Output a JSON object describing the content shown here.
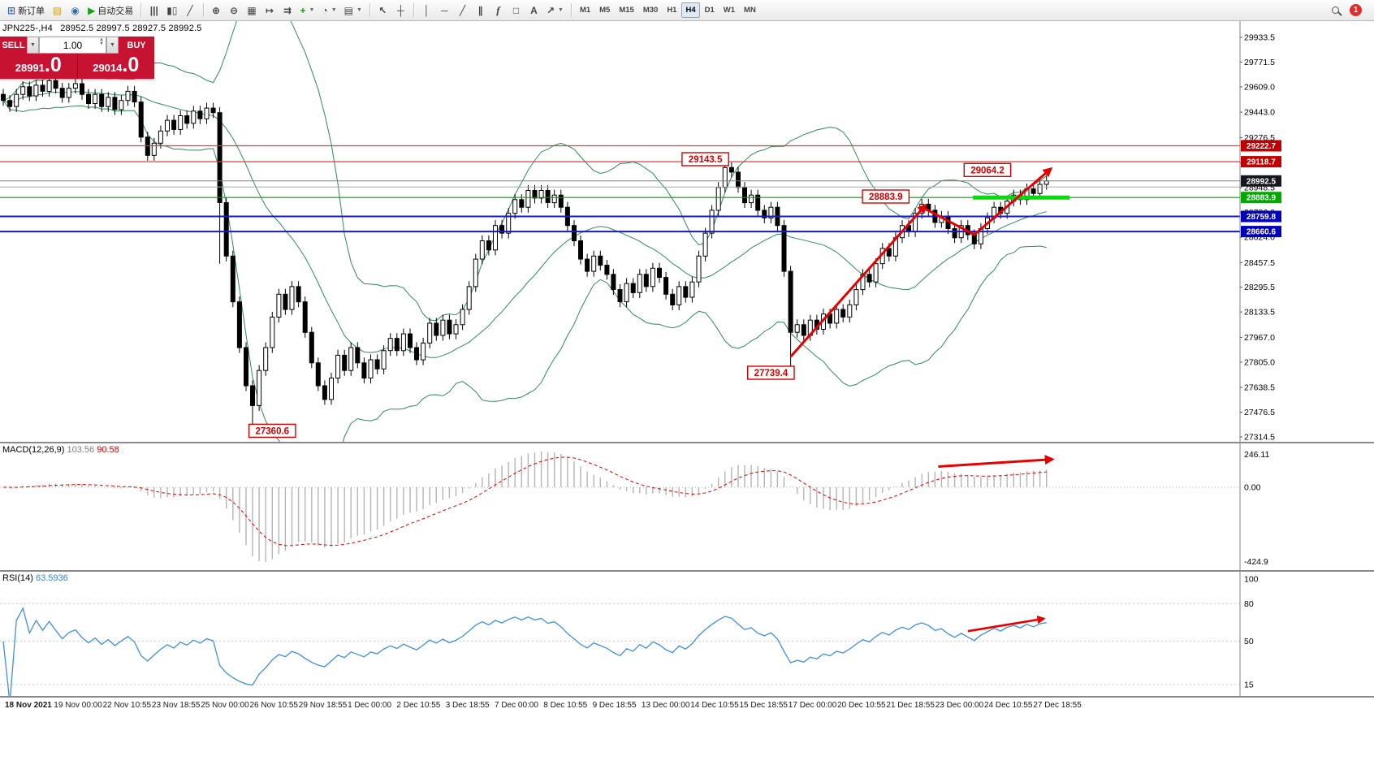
{
  "toolbar": {
    "active_timeframe": "H4",
    "items": [
      {
        "type": "labeled",
        "name": "new-order-button",
        "icon": "new-order-icon",
        "glyph": "⊞",
        "color": "#3a6ea5",
        "label": "新订单"
      },
      {
        "type": "icon",
        "name": "profiles-button",
        "icon": "profiles-icon",
        "glyph": "▨",
        "color": "#d9a21b"
      },
      {
        "type": "icon",
        "name": "data-window-button",
        "icon": "data-window-icon",
        "glyph": "◉",
        "color": "#3a6ea5"
      },
      {
        "type": "labeled",
        "name": "autotrading-button",
        "icon": "autotrading-play-icon",
        "glyph": "▶",
        "color": "#18a018",
        "label": "自动交易"
      },
      {
        "type": "sep"
      },
      {
        "type": "icon",
        "name": "bar-chart-button",
        "icon": "bar-chart-icon",
        "glyph": "|||",
        "color": "#444"
      },
      {
        "type": "icon",
        "name": "candlestick-chart-button",
        "icon": "candlestick-chart-icon",
        "glyph": "▮▯",
        "color": "#444"
      },
      {
        "type": "icon",
        "name": "line-chart-button",
        "icon": "line-chart-icon",
        "glyph": "╱",
        "color": "#444"
      },
      {
        "type": "sep"
      },
      {
        "type": "icon",
        "name": "zoom-in-button",
        "icon": "zoom-in-icon",
        "glyph": "⊕",
        "color": "#444"
      },
      {
        "type": "icon",
        "name": "zoom-out-button",
        "icon": "zoom-out-icon",
        "glyph": "⊖",
        "color": "#444"
      },
      {
        "type": "icon",
        "name": "tile-windows-button",
        "icon": "tile-windows-icon",
        "glyph": "▦",
        "color": "#444"
      },
      {
        "type": "icon",
        "name": "auto-scroll-button",
        "icon": "auto-scroll-icon",
        "glyph": "↦",
        "color": "#444"
      },
      {
        "type": "icon",
        "name": "chart-shift-button",
        "icon": "chart-shift-icon",
        "glyph": "⇉",
        "color": "#444"
      },
      {
        "type": "icon",
        "name": "indicators-button",
        "icon": "indicators-plus-icon",
        "glyph": "+",
        "color": "#18a018",
        "dropdown": true
      },
      {
        "type": "icon",
        "name": "periods-button",
        "icon": "clock-icon",
        "glyph": "◔",
        "color": "#444",
        "dropdown": true
      },
      {
        "type": "icon",
        "name": "templates-button",
        "icon": "template-icon",
        "glyph": "▤",
        "color": "#444",
        "dropdown": true
      },
      {
        "type": "sep"
      },
      {
        "type": "icon",
        "name": "cursor-button",
        "icon": "cursor-icon",
        "glyph": "↖",
        "color": "#444"
      },
      {
        "type": "icon",
        "name": "crosshair-button",
        "icon": "crosshair-icon",
        "glyph": "┼",
        "color": "#444"
      },
      {
        "type": "sep"
      },
      {
        "type": "icon",
        "name": "vertical-line-button",
        "icon": "vertical-line-icon",
        "glyph": "│",
        "color": "#444"
      },
      {
        "type": "icon",
        "name": "horizontal-line-button",
        "icon": "horizontal-line-icon",
        "glyph": "─",
        "color": "#444"
      },
      {
        "type": "icon",
        "name": "trendline-button",
        "icon": "trendline-icon",
        "glyph": "╱",
        "color": "#444"
      },
      {
        "type": "icon",
        "name": "channel-button",
        "icon": "channel-icon",
        "glyph": "∥",
        "color": "#444"
      },
      {
        "type": "icon",
        "name": "fibonacci-button",
        "icon": "fibonacci-icon",
        "glyph": "f",
        "color": "#444",
        "italic": true
      },
      {
        "type": "icon",
        "name": "shapes-button",
        "icon": "shapes-icon",
        "glyph": "□",
        "color": "#444"
      },
      {
        "type": "icon",
        "name": "text-button",
        "icon": "text-label-icon",
        "glyph": "A",
        "color": "#444"
      },
      {
        "type": "icon",
        "name": "arrow-tools-button",
        "icon": "arrow-tools-icon",
        "glyph": "↗",
        "color": "#444",
        "dropdown": true
      },
      {
        "type": "sep"
      },
      {
        "type": "tf",
        "name": "timeframe-m1",
        "label": "M1"
      },
      {
        "type": "tf",
        "name": "timeframe-m5",
        "label": "M5"
      },
      {
        "type": "tf",
        "name": "timeframe-m15",
        "label": "M15"
      },
      {
        "type": "tf",
        "name": "timeframe-m30",
        "label": "M30"
      },
      {
        "type": "tf",
        "name": "timeframe-h1",
        "label": "H1"
      },
      {
        "type": "tf",
        "name": "timeframe-h4",
        "label": "H4"
      },
      {
        "type": "tf",
        "name": "timeframe-d1",
        "label": "D1"
      },
      {
        "type": "tf",
        "name": "timeframe-w1",
        "label": "W1"
      },
      {
        "type": "tf",
        "name": "timeframe-mn",
        "label": "MN"
      },
      {
        "type": "spacer"
      },
      {
        "type": "magnifier",
        "name": "search-button"
      },
      {
        "type": "badge",
        "name": "notifications-badge",
        "label": "1"
      }
    ]
  },
  "chart_header": {
    "symbol_info": "JPN225-,H4",
    "ohlc": "28952.5 28997.5 28927.5 28992.5"
  },
  "trade_panel": {
    "sell_label": "SELL",
    "buy_label": "BUY",
    "volume": "1.00",
    "sell_price_prefix": "28991",
    "sell_price_big": ".0",
    "buy_price_prefix": "29014",
    "buy_price_big": ".0"
  },
  "macd": {
    "label": "MACD(12,26,9)",
    "value1": "103.56",
    "value2": "90.58",
    "axis": [
      "246.11",
      "0.00",
      "-424.9"
    ]
  },
  "rsi": {
    "label": "RSI(14)",
    "value": "63.5936",
    "axis": [
      "100",
      "80",
      "50",
      "15"
    ]
  },
  "time_axis": [
    "18 Nov 2021",
    "19 Nov 00:00",
    "22 Nov 10:55",
    "23 Nov 18:55",
    "25 Nov 00:00",
    "26 Nov 10:55",
    "29 Nov 18:55",
    "1 Dec 00:00",
    "2 Dec 10:55",
    "3 Dec 18:55",
    "7 Dec 00:00",
    "8 Dec 10:55",
    "9 Dec 18:55",
    "13 Dec 00:00",
    "14 Dec 10:55",
    "15 Dec 18:55",
    "17 Dec 00:00",
    "20 Dec 10:55",
    "21 Dec 18:55",
    "23 Dec 00:00",
    "24 Dec 10:55",
    "27 Dec 18:55"
  ],
  "chart_data": {
    "type": "candlestick",
    "symbol": "JPN225-",
    "timeframe": "H4",
    "title": "JPN225- H4 with Bollinger Bands, MACD(12,26,9), RSI(14)",
    "first_open": 29560,
    "closes": [
      29520,
      29480,
      29560,
      29610,
      29550,
      29620,
      29580,
      29650,
      29600,
      29540,
      29600,
      29630,
      29560,
      29500,
      29560,
      29480,
      29540,
      29460,
      29520,
      29580,
      29510,
      29280,
      29160,
      29240,
      29320,
      29390,
      29330,
      29420,
      29370,
      29450,
      29400,
      29470,
      29440,
      28850,
      28500,
      28200,
      27900,
      27650,
      27520,
      27750,
      27900,
      28100,
      28250,
      28150,
      28300,
      28200,
      28000,
      27800,
      27650,
      27560,
      27700,
      27850,
      27750,
      27900,
      27800,
      27700,
      27820,
      27760,
      27880,
      27960,
      27880,
      27990,
      27900,
      27820,
      27930,
      28060,
      27980,
      28080,
      27990,
      28050,
      28150,
      28300,
      28480,
      28600,
      28540,
      28700,
      28650,
      28780,
      28870,
      28820,
      28930,
      28880,
      28930,
      28850,
      28900,
      28820,
      28700,
      28600,
      28480,
      28400,
      28500,
      28440,
      28380,
      28280,
      28200,
      28320,
      28260,
      28380,
      28300,
      28420,
      28360,
      28250,
      28180,
      28300,
      28230,
      28330,
      28500,
      28650,
      28800,
      28950,
      29080,
      29050,
      28950,
      28850,
      28900,
      28800,
      28750,
      28820,
      28700,
      28400,
      28000,
      28050,
      27980,
      28080,
      28020,
      28120,
      28060,
      28150,
      28100,
      28180,
      28280,
      28380,
      28330,
      28450,
      28550,
      28500,
      28620,
      28700,
      28660,
      28780,
      28840,
      28800,
      28720,
      28760,
      28680,
      28620,
      28700,
      28640,
      28580,
      28680,
      28750,
      28820,
      28780,
      28860,
      28900,
      28870,
      28940,
      28910,
      28970,
      28992.5
    ],
    "wick_overrides": {
      "highs": {
        "110": 29143.5
      },
      "lows": {
        "33": 28450,
        "38": 27360.6,
        "120": 27739.4
      }
    },
    "bollinger": {
      "period": 20,
      "deviation": 2
    },
    "price_axis": {
      "top_price": 29933.5,
      "bottom_price": 27314.5,
      "ticks": [
        29933.5,
        29771.5,
        29609.0,
        29443.0,
        29276.5,
        29110.5,
        28948.5,
        28786.0,
        28624.0,
        28457.5,
        28295.5,
        28133.5,
        27967.0,
        27805.0,
        27638.5,
        27476.5,
        27314.5
      ]
    },
    "levels": [
      {
        "price": 29222.7,
        "color": "#e03c3c",
        "width": 1.2,
        "tag": true,
        "tag_bg": "#c00000"
      },
      {
        "price": 29118.7,
        "color": "#e03c3c",
        "width": 1.2,
        "tag": true,
        "tag_bg": "#c00000"
      },
      {
        "price": 28992.5,
        "color": "#808080",
        "width": 1,
        "tag": true,
        "tag_bg": "#16161f"
      },
      {
        "price": 28952.5,
        "color": "#a8a8a8",
        "width": 1,
        "tag": false,
        "tag_bg": ""
      },
      {
        "price": 28883.9,
        "color": "#00a000",
        "width": 1.2,
        "tag": true,
        "tag_bg": "#00a800"
      },
      {
        "price": 28759.8,
        "color": "#1818c8",
        "width": 2,
        "tag": true,
        "tag_bg": "#0000b8"
      },
      {
        "price": 28660.6,
        "color": "#1818c8",
        "width": 2,
        "tag": true,
        "tag_bg": "#0000b8"
      }
    ],
    "green_segment": {
      "price": 28883.9,
      "i1": 147.8,
      "i2": 162.5
    },
    "callouts": [
      {
        "text": "29143.5",
        "i": 107,
        "price": 29135
      },
      {
        "text": "29064.2",
        "i": 150,
        "price": 29064
      },
      {
        "text": "28883.9",
        "i": 134.5,
        "price": 28890
      },
      {
        "text": "27739.4",
        "i": 117,
        "price": 27735
      },
      {
        "text": "27360.6",
        "i": 41,
        "price": 27355
      }
    ],
    "arrows_main": [
      {
        "points": [
          [
            120,
            27840
          ],
          [
            140.5,
            28830
          ]
        ]
      },
      {
        "points": [
          [
            140.5,
            28810
          ],
          [
            148,
            28640
          ],
          [
            159.6,
            29070
          ]
        ]
      }
    ],
    "macd_arrow": {
      "points": [
        [
          142.5,
          130
        ],
        [
          159.8,
          175
        ]
      ]
    },
    "rsi_arrow": {
      "points": [
        [
          147,
          58
        ],
        [
          158.5,
          68
        ]
      ]
    },
    "colors": {
      "bullish": "#ffffff",
      "bearish": "#000000",
      "outline": "#000000",
      "bollinger": "#2e8b57",
      "macd_histogram": "#b4b4b4",
      "macd_signal": "#e00000",
      "rsi_line": "#3f8fdf",
      "arrow": "#e60000"
    }
  }
}
